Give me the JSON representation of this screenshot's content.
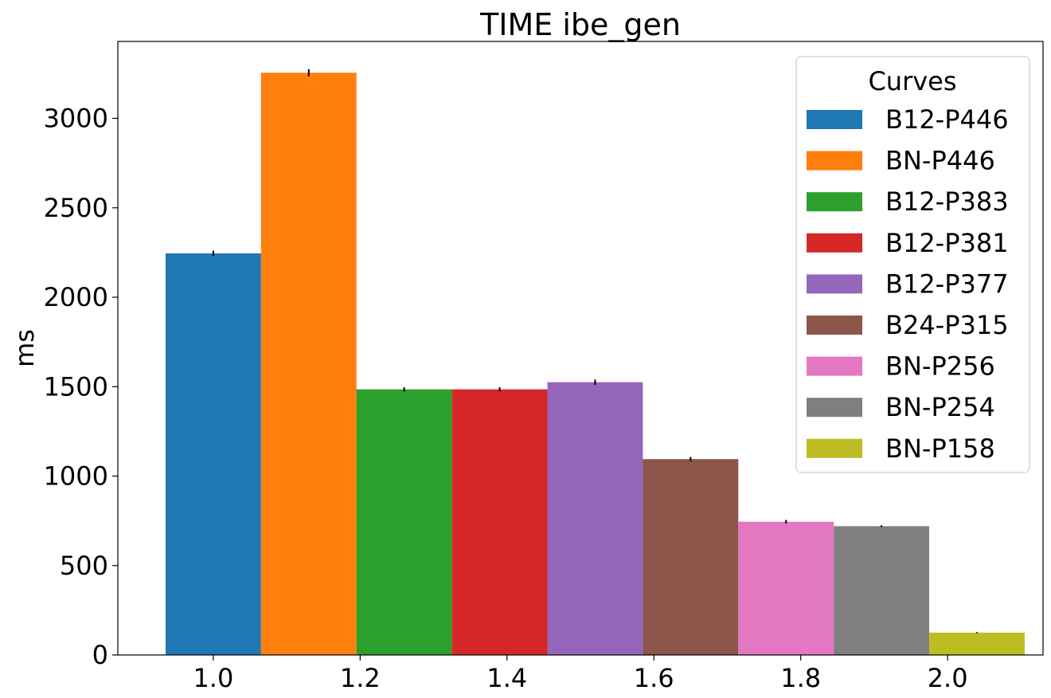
{
  "chart_data": {
    "type": "bar",
    "title": "TIME ibe_gen",
    "xlabel": "",
    "ylabel": "ms",
    "xlim": [
      0.87,
      2.13
    ],
    "ylim": [
      0,
      3430
    ],
    "xticks": [
      1.0,
      1.2,
      1.4,
      1.6,
      1.8,
      2.0
    ],
    "xtick_labels": [
      "1.0",
      "1.2",
      "1.4",
      "1.6",
      "1.8",
      "2.0"
    ],
    "yticks": [
      0,
      500,
      1000,
      1500,
      2000,
      2500,
      3000
    ],
    "ytick_labels": [
      "0",
      "500",
      "1000",
      "1500",
      "2000",
      "2500",
      "3000"
    ],
    "bar_width": 0.13,
    "legend": {
      "title": "Curves",
      "position": "top-right"
    },
    "series": [
      {
        "name": "B12-P446",
        "x": 1.0,
        "value": 2245,
        "error": 15,
        "color": "#1f77b4"
      },
      {
        "name": "BN-P446",
        "x": 1.13,
        "value": 3255,
        "error": 20,
        "color": "#ff7f0e"
      },
      {
        "name": "B12-P383",
        "x": 1.26,
        "value": 1485,
        "error": 12,
        "color": "#2ca02c"
      },
      {
        "name": "B12-P381",
        "x": 1.39,
        "value": 1485,
        "error": 12,
        "color": "#d62728"
      },
      {
        "name": "B12-P377",
        "x": 1.52,
        "value": 1525,
        "error": 15,
        "color": "#9467bd"
      },
      {
        "name": "B24-P315",
        "x": 1.65,
        "value": 1095,
        "error": 12,
        "color": "#8c564b"
      },
      {
        "name": "BN-P256",
        "x": 1.78,
        "value": 745,
        "error": 10,
        "color": "#e377c2"
      },
      {
        "name": "BN-P254",
        "x": 1.91,
        "value": 720,
        "error": 5,
        "color": "#7f7f7f"
      },
      {
        "name": "BN-P158",
        "x": 2.04,
        "value": 125,
        "error": 3,
        "color": "#bcbd22"
      }
    ]
  }
}
